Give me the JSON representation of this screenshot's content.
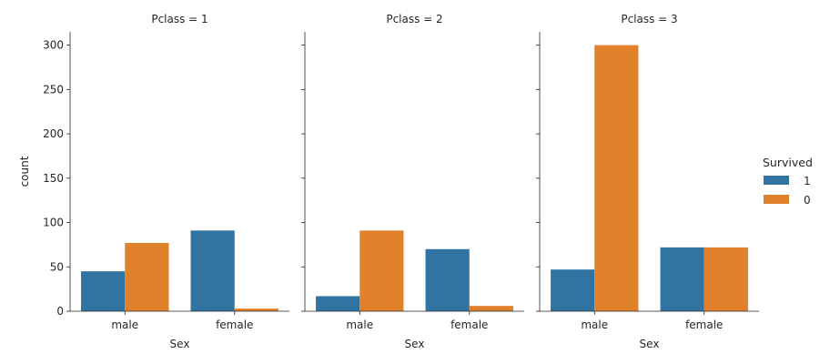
{
  "chart_data": {
    "type": "bar",
    "facet_label": "Pclass",
    "xlabel": "Sex",
    "ylabel": "count",
    "ylim": [
      0,
      315
    ],
    "yticks": [
      0,
      50,
      100,
      150,
      200,
      250,
      300
    ],
    "categories": [
      "male",
      "female"
    ],
    "legend": {
      "title": "Survived",
      "placement": "right",
      "entries": [
        {
          "label": "1",
          "color": "#3274a1"
        },
        {
          "label": "0",
          "color": "#e1812c"
        }
      ]
    },
    "panels": [
      {
        "title": "Pclass = 1",
        "series": [
          {
            "name": "1",
            "values": [
              45,
              91
            ]
          },
          {
            "name": "0",
            "values": [
              77,
              3
            ]
          }
        ]
      },
      {
        "title": "Pclass = 2",
        "series": [
          {
            "name": "1",
            "values": [
              17,
              70
            ]
          },
          {
            "name": "0",
            "values": [
              91,
              6
            ]
          }
        ]
      },
      {
        "title": "Pclass = 3",
        "series": [
          {
            "name": "1",
            "values": [
              47,
              72
            ]
          },
          {
            "name": "0",
            "values": [
              300,
              72
            ]
          }
        ]
      }
    ]
  }
}
